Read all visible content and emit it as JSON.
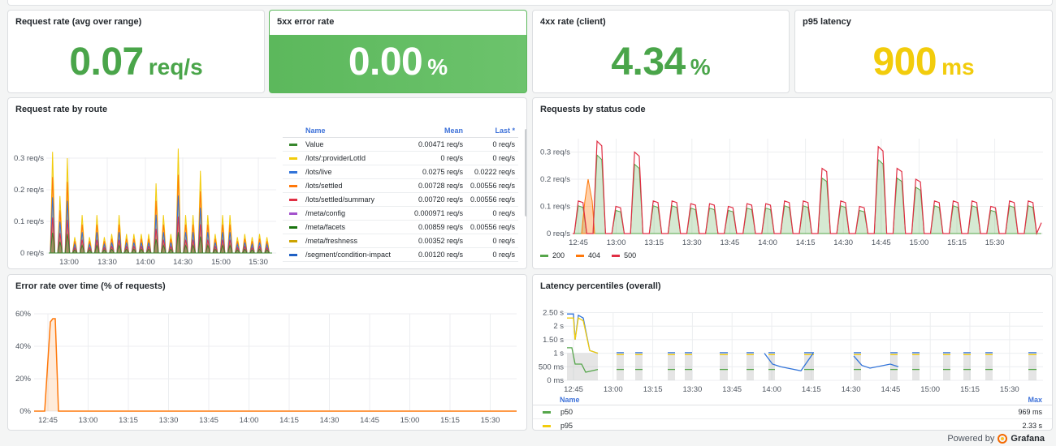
{
  "stats": [
    {
      "title": "Request rate (avg over range)",
      "value": "0.07",
      "unit": "req/s",
      "color": "#4aa54a"
    },
    {
      "title": "5xx error rate",
      "value": "0.00",
      "unit": "%",
      "color": "#ffffff",
      "background": "#5cb85c"
    },
    {
      "title": "4xx rate (client)",
      "value": "4.34",
      "unit": "%",
      "color": "#4aa54a"
    },
    {
      "title": "p95 latency",
      "value": "900",
      "unit": "ms",
      "color": "#f2cc0c"
    }
  ],
  "route_panel": {
    "title": "Request rate by route",
    "legend_headers": {
      "name": "Name",
      "mean": "Mean",
      "last": "Last *"
    },
    "legend": [
      {
        "name": "Value",
        "mean": "0.00471 req/s",
        "last": "0 req/s",
        "color": "#37872d"
      },
      {
        "name": "/lots/:providerLotId",
        "mean": "0 req/s",
        "last": "0 req/s",
        "color": "#f2cc0c"
      },
      {
        "name": "/lots/live",
        "mean": "0.0275 req/s",
        "last": "0.0222 req/s",
        "color": "#3274d9"
      },
      {
        "name": "/lots/settled",
        "mean": "0.00728 req/s",
        "last": "0.00556 req/s",
        "color": "#ff780a"
      },
      {
        "name": "/lots/settled/summary",
        "mean": "0.00720 req/s",
        "last": "0.00556 req/s",
        "color": "#e02f44"
      },
      {
        "name": "/meta/config",
        "mean": "0.000971 req/s",
        "last": "0 req/s",
        "color": "#a352cc"
      },
      {
        "name": "/meta/facets",
        "mean": "0.00859 req/s",
        "last": "0.00556 req/s",
        "color": "#19730e"
      },
      {
        "name": "/meta/freshness",
        "mean": "0.00352 req/s",
        "last": "0 req/s",
        "color": "#cca300"
      },
      {
        "name": "/segment/condition-impact",
        "mean": "0.00120 req/s",
        "last": "0 req/s",
        "color": "#1f60c4"
      }
    ],
    "y_ticks": [
      "0 req/s",
      "0.1 req/s",
      "0.2 req/s",
      "0.3 req/s"
    ],
    "x_ticks": [
      "13:00",
      "13:30",
      "14:00",
      "14:30",
      "15:00",
      "15:30"
    ]
  },
  "status_panel": {
    "title": "Requests by status code",
    "y_ticks": [
      "0 req/s",
      "0.1 req/s",
      "0.2 req/s",
      "0.3 req/s"
    ],
    "x_ticks": [
      "12:45",
      "13:00",
      "13:15",
      "13:30",
      "13:45",
      "14:00",
      "14:15",
      "14:30",
      "14:45",
      "15:00",
      "15:15",
      "15:30"
    ],
    "legend": [
      {
        "name": "200",
        "color": "#56a64b"
      },
      {
        "name": "404",
        "color": "#ff780a"
      },
      {
        "name": "500",
        "color": "#e02f44"
      }
    ]
  },
  "error_panel": {
    "title": "Error rate over time (% of requests)",
    "y_ticks": [
      "0%",
      "20%",
      "40%",
      "60%"
    ],
    "x_ticks": [
      "12:45",
      "13:00",
      "13:15",
      "13:30",
      "13:45",
      "14:00",
      "14:15",
      "14:30",
      "14:45",
      "15:00",
      "15:15",
      "15:30"
    ]
  },
  "latency_panel": {
    "title": "Latency percentiles (overall)",
    "y_ticks": [
      "0 ms",
      "500 ms",
      "1 s",
      "1.50 s",
      "2 s",
      "2.50 s"
    ],
    "x_ticks": [
      "12:45",
      "13:00",
      "13:15",
      "13:30",
      "13:45",
      "14:00",
      "14:15",
      "14:30",
      "14:45",
      "15:00",
      "15:15",
      "15:30"
    ],
    "legend_headers": {
      "name": "Name",
      "max": "Max"
    },
    "legend": [
      {
        "name": "p50",
        "max": "969 ms",
        "color": "#56a64b"
      },
      {
        "name": "p95",
        "max": "2.33 s",
        "color": "#f2cc0c"
      }
    ]
  },
  "footer": {
    "powered_by": "Powered by",
    "brand": "Grafana"
  },
  "chart_data": [
    {
      "type": "area",
      "title": "Request rate by route",
      "ylim": [
        0,
        0.35
      ],
      "x": [
        "12:45",
        "13:00",
        "13:30",
        "14:00",
        "14:30",
        "15:00",
        "15:30",
        "15:45"
      ],
      "series": [
        {
          "name": "/lots/live",
          "approx_peaks": [
            0.32,
            0.22,
            0.28,
            0.2,
            0.25,
            0.33,
            0.1
          ]
        }
      ]
    },
    {
      "type": "area",
      "title": "Requests by status code",
      "ylim": [
        0,
        0.35
      ],
      "series": [
        {
          "name": "500",
          "approx_peak_values": [
            0.34,
            0.3,
            0.2,
            0.1,
            0.1,
            0.11,
            0.24,
            0.31,
            0.24,
            0.11,
            0.12,
            0.12
          ]
        },
        {
          "name": "404",
          "approx_peak_values": [
            0.18
          ]
        },
        {
          "name": "200",
          "approx_peak_values": [
            0.12,
            0.1,
            0.2,
            0.22,
            0.1
          ]
        }
      ]
    },
    {
      "type": "area",
      "title": "Error rate over time (% of requests)",
      "ylim": [
        0,
        60
      ],
      "series": [
        {
          "name": "Error rate",
          "values_pct": [
            0,
            57,
            57,
            0,
            0,
            0,
            0,
            0,
            0,
            0,
            0,
            0
          ]
        }
      ]
    },
    {
      "type": "line",
      "title": "Latency percentiles (overall)",
      "ylim": [
        0,
        2.5
      ],
      "series": [
        {
          "name": "p50",
          "max": 0.969
        },
        {
          "name": "p95",
          "max": 2.33
        }
      ]
    }
  ]
}
